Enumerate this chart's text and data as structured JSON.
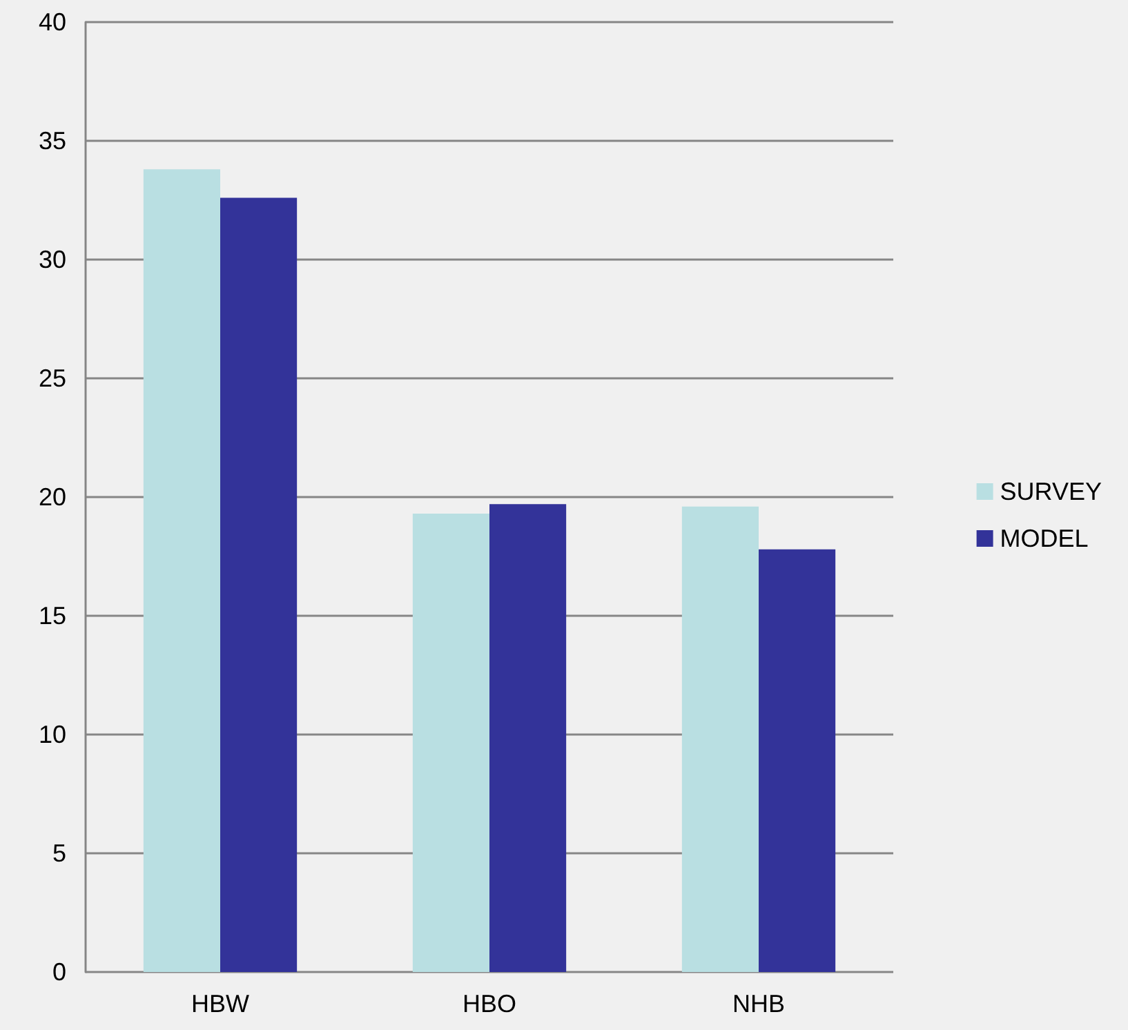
{
  "chart_data": {
    "type": "bar",
    "categories": [
      "HBW",
      "HBO",
      "NHB"
    ],
    "series": [
      {
        "name": "SURVEY",
        "color": "#b9dfe2",
        "values": [
          33.8,
          19.3,
          19.6
        ]
      },
      {
        "name": "MODEL",
        "color": "#333399",
        "values": [
          32.6,
          19.7,
          17.8
        ]
      }
    ],
    "ylim": [
      0,
      40
    ],
    "yticks": [
      0,
      5,
      10,
      15,
      20,
      25,
      30,
      35,
      40
    ],
    "grid": "y",
    "legend": "right"
  }
}
